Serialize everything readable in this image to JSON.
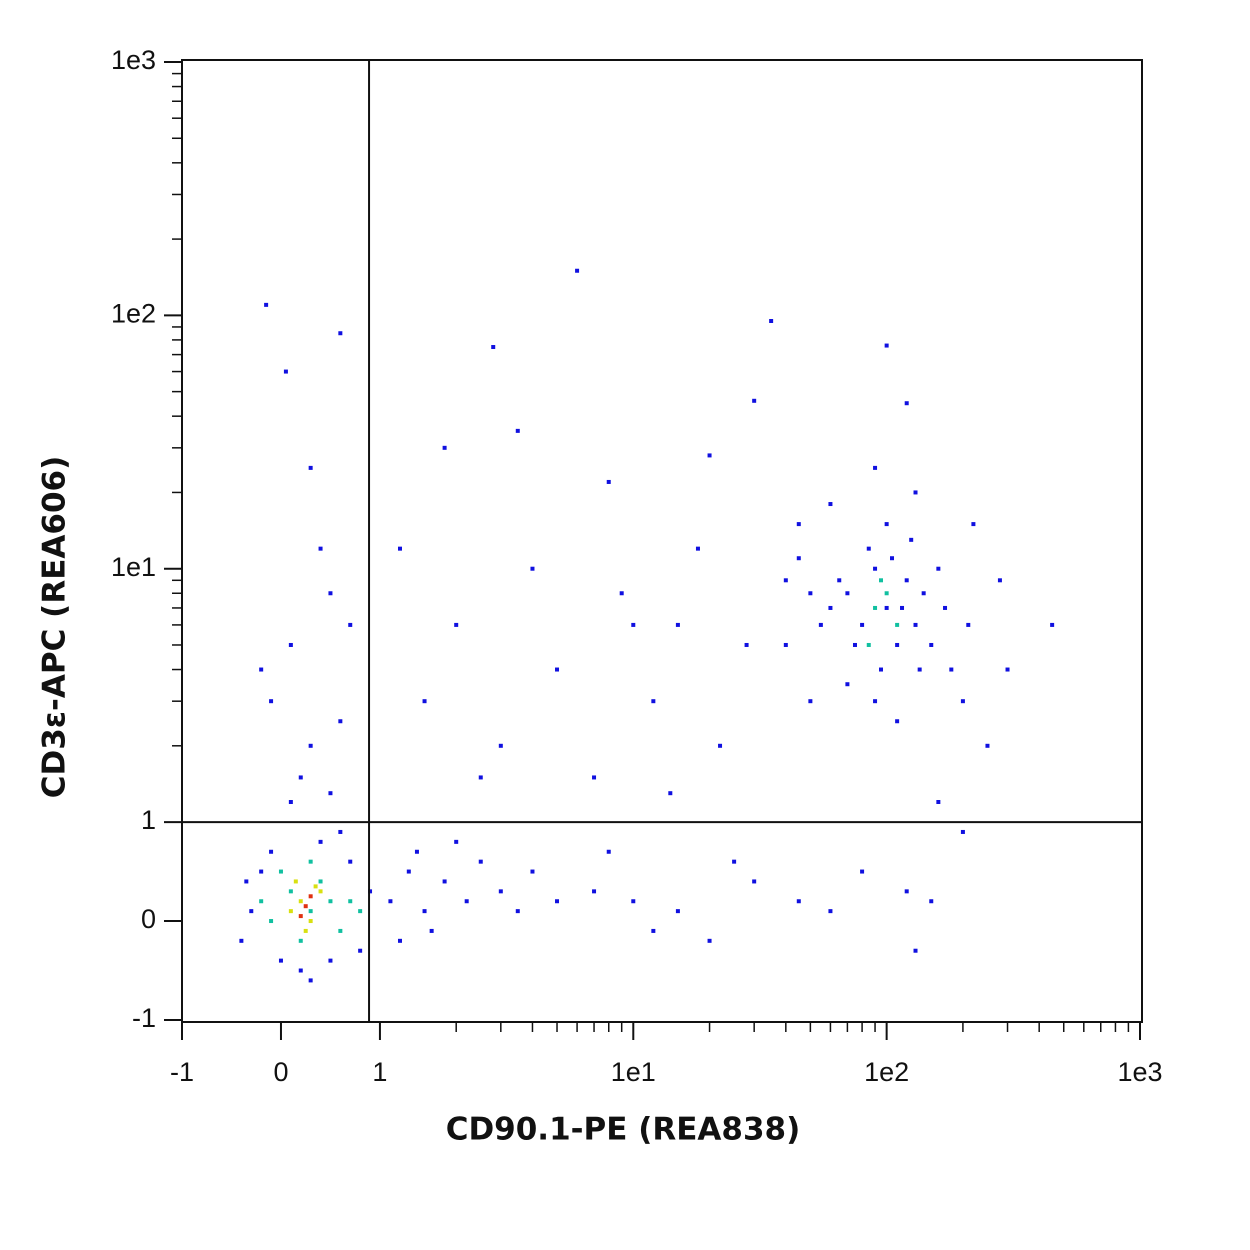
{
  "chart_data": {
    "type": "scatter",
    "x_label": "CD90.1-PE (REA838)",
    "y_label": "CD3ε-APC (REA606)",
    "scale": "logicle",
    "xlim": [
      -1,
      1000
    ],
    "ylim": [
      -1,
      1000
    ],
    "xticks": [
      -1,
      0,
      1,
      {
        "value": 10,
        "label": "1e1"
      },
      {
        "value": 100,
        "label": "1e2"
      },
      {
        "value": 1000,
        "label": "1e3"
      }
    ],
    "yticks": [
      -1,
      0,
      1,
      {
        "value": 10,
        "label": "1e1"
      },
      {
        "value": 100,
        "label": "1e2"
      },
      {
        "value": 1000,
        "label": "1e3"
      }
    ],
    "minor_ticks": [
      2,
      3,
      4,
      5,
      6,
      7,
      8,
      9,
      20,
      30,
      40,
      50,
      60,
      70,
      80,
      90,
      200,
      300,
      400,
      500,
      600,
      700,
      800,
      900
    ],
    "gates": {
      "x": 0.89,
      "y": 1
    },
    "series": [
      {
        "color": "#1010e0",
        "x": [
          -0.3,
          -0.4,
          -0.2,
          0,
          0.2,
          0.5,
          0.7,
          0.8,
          -0.1,
          0.4,
          0.9,
          1.1,
          1.3,
          1.5,
          1.8,
          2.2,
          2.5,
          3,
          1.2,
          1.6,
          0.6,
          0.3,
          -0.35,
          1.4,
          2,
          4,
          5,
          3.5,
          7,
          10,
          15,
          20,
          30,
          45,
          60,
          80,
          120,
          25,
          12,
          8,
          -0.1,
          0.1,
          0.3,
          0.5,
          0.2,
          -0.2,
          0.6,
          0.4,
          0.7,
          -0.15,
          0.05,
          0.6,
          0.3,
          0.5,
          0.1,
          1.5,
          2,
          3,
          4,
          5,
          6,
          7,
          9,
          12,
          15,
          18,
          22,
          28,
          35,
          30,
          40,
          50,
          45,
          60,
          14,
          2.5,
          1.8,
          3.5,
          8,
          20,
          1.2,
          2.8,
          10,
          70,
          80,
          90,
          100,
          110,
          120,
          130,
          85,
          95,
          105,
          115,
          75,
          65,
          140,
          150,
          160,
          55,
          125,
          135,
          90,
          100,
          170,
          180,
          200,
          210,
          250,
          280,
          300,
          450,
          110,
          130,
          90,
          120,
          100,
          60,
          220,
          40,
          45,
          50,
          70,
          160,
          200,
          150,
          130
        ],
        "y": [
          0.1,
          -0.2,
          0.5,
          -0.4,
          -0.5,
          -0.4,
          0.6,
          -0.3,
          0.7,
          0.8,
          0.3,
          0.2,
          0.5,
          0.1,
          0.4,
          0.2,
          0.6,
          0.3,
          -0.2,
          -0.1,
          0.9,
          -0.6,
          0.4,
          0.7,
          0.8,
          0.5,
          0.2,
          0.1,
          0.3,
          0.2,
          0.1,
          -0.2,
          0.4,
          0.2,
          0.1,
          0.5,
          0.3,
          0.6,
          -0.1,
          0.7,
          3,
          5,
          2,
          8,
          1.5,
          4,
          2.5,
          12,
          6,
          110,
          60,
          85,
          25,
          1.3,
          1.2,
          3,
          6,
          2,
          10,
          4,
          150,
          1.5,
          8,
          3,
          6,
          12,
          2,
          5,
          95,
          46,
          9,
          3,
          15,
          7,
          1.3,
          1.5,
          30,
          35,
          22,
          28,
          12,
          75,
          6,
          8,
          6,
          10,
          7,
          5,
          9,
          6,
          12,
          4,
          11,
          7,
          5,
          9,
          8,
          5,
          10,
          6,
          13,
          4,
          3,
          15,
          7,
          4,
          3,
          6,
          2,
          9,
          4,
          6,
          2.5,
          20,
          25,
          45,
          76,
          18,
          15,
          5,
          11,
          8,
          3.5,
          1.2,
          0.9,
          0.2,
          -0.3
        ]
      },
      {
        "color": "#10c0a0",
        "x": [
          90,
          100,
          110,
          95,
          85,
          0.1,
          0.3,
          0.5,
          -0.1,
          0.2,
          0.4,
          0.6,
          0,
          0.7,
          -0.2,
          0.3,
          0.8
        ],
        "y": [
          7,
          8,
          6,
          9,
          5,
          0.3,
          0.1,
          0.2,
          0,
          -0.2,
          0.4,
          -0.1,
          0.5,
          0.2,
          0.2,
          0.6,
          0.1
        ]
      },
      {
        "color": "#d8e010",
        "x": [
          0.2,
          0.3,
          0.1,
          0.4,
          0.25,
          0.35,
          0.15
        ],
        "y": [
          0.2,
          0,
          0.1,
          0.3,
          -0.1,
          0.35,
          0.4
        ]
      },
      {
        "color": "#e03010",
        "x": [
          0.25,
          0.3,
          0.2
        ],
        "y": [
          0.15,
          0.25,
          0.05
        ]
      }
    ]
  }
}
